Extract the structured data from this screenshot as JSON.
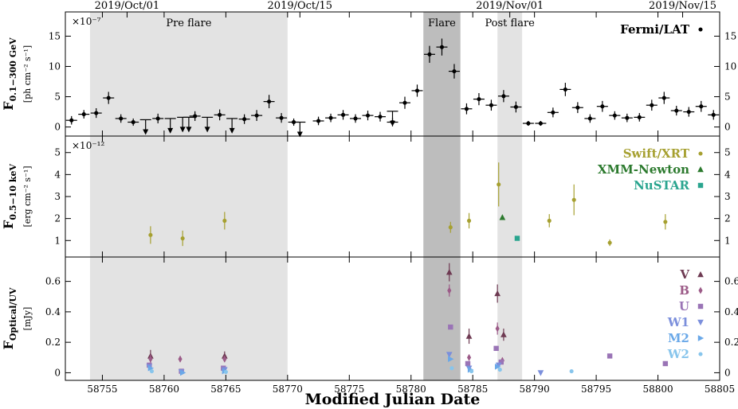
{
  "chart_data": {
    "type": "scatter",
    "xlabel": "Modified Julian Date",
    "xlim": [
      58752,
      58805
    ],
    "x_ticks": [
      58755,
      58760,
      58765,
      58770,
      58775,
      58780,
      58785,
      58790,
      58795,
      58800,
      58805
    ],
    "top_axis_dates": [
      {
        "label": "2019/Oct/01",
        "mjd": 58757
      },
      {
        "label": "2019/Oct/15",
        "mjd": 58771
      },
      {
        "label": "2019/Nov/01",
        "mjd": 58788
      },
      {
        "label": "2019/Nov/15",
        "mjd": 58802
      }
    ],
    "regions": [
      {
        "label": "Pre flare",
        "start": 58754,
        "end": 58770,
        "color": "#e3e3e3"
      },
      {
        "label": "Flare",
        "start": 58781,
        "end": 58784,
        "color": "#bdbdbd"
      },
      {
        "label": "Post flare",
        "start": 58787,
        "end": 58789,
        "color": "#e3e3e3"
      }
    ],
    "panels": [
      {
        "id": "gamma",
        "ylabel_main": "F",
        "ylabel_sub": "0.1−300 GeV",
        "ylabel_unit": "[ph cm⁻² s⁻¹]",
        "scale_note": "×10⁻⁷",
        "ylim": [
          -1.5,
          19
        ],
        "yticks": [
          0,
          5,
          10,
          15
        ],
        "series": [
          {
            "name": "Fermi/LAT",
            "color": "#000000",
            "marker": "circle",
            "points": [
              [
                58752.5,
                1.1,
                0.7
              ],
              [
                58753.5,
                2.1,
                0.7
              ],
              [
                58754.5,
                2.3,
                0.8
              ],
              [
                58755.5,
                4.8,
                1.0
              ],
              [
                58756.5,
                1.4,
                0.7
              ],
              [
                58757.5,
                0.8,
                0.6
              ],
              [
                58759.5,
                1.4,
                0.8
              ],
              [
                58762.5,
                1.8,
                0.8
              ],
              [
                58764.5,
                2.0,
                0.9
              ],
              [
                58766.5,
                1.3,
                0.8
              ],
              [
                58767.5,
                1.9,
                0.9
              ],
              [
                58768.5,
                4.2,
                1.1
              ],
              [
                58769.5,
                1.5,
                0.8
              ],
              [
                58770.5,
                0.8,
                0.6
              ],
              [
                58772.5,
                1.0,
                0.7
              ],
              [
                58773.5,
                1.5,
                0.7
              ],
              [
                58774.5,
                2.0,
                0.8
              ],
              [
                58775.5,
                1.4,
                0.7
              ],
              [
                58776.5,
                1.9,
                0.8
              ],
              [
                58777.5,
                1.7,
                0.8
              ],
              [
                58778.5,
                0.8,
                0.7
              ],
              [
                58779.5,
                4.0,
                1.0
              ],
              [
                58780.5,
                6.0,
                1.0
              ],
              [
                58781.5,
                12.0,
                1.4
              ],
              [
                58782.5,
                13.2,
                1.4
              ],
              [
                58783.5,
                9.2,
                1.2
              ],
              [
                58784.5,
                3.0,
                0.9
              ],
              [
                58785.5,
                4.6,
                1.0
              ],
              [
                58786.5,
                3.6,
                0.9
              ],
              [
                58787.5,
                5.1,
                1.0
              ],
              [
                58788.5,
                3.3,
                0.9
              ],
              [
                58789.5,
                0.6,
                0.4
              ],
              [
                58790.5,
                0.6,
                0.4
              ],
              [
                58791.5,
                2.4,
                0.8
              ],
              [
                58792.5,
                6.2,
                1.1
              ],
              [
                58793.5,
                3.2,
                0.9
              ],
              [
                58794.5,
                1.4,
                0.7
              ],
              [
                58795.5,
                3.4,
                0.9
              ],
              [
                58796.5,
                1.9,
                0.7
              ],
              [
                58797.5,
                1.5,
                0.7
              ],
              [
                58798.5,
                1.6,
                0.7
              ],
              [
                58799.5,
                3.6,
                0.9
              ],
              [
                58800.5,
                4.8,
                1.0
              ],
              [
                58801.5,
                2.7,
                0.8
              ],
              [
                58802.5,
                2.5,
                0.8
              ],
              [
                58803.5,
                3.4,
                0.9
              ],
              [
                58804.5,
                2.0,
                0.8
              ]
            ],
            "upper_limits": [
              [
                58758.5,
                1.2
              ],
              [
                58760.5,
                1.4
              ],
              [
                58761.5,
                1.6
              ],
              [
                58762.0,
                1.6
              ],
              [
                58763.5,
                1.6
              ],
              [
                58765.5,
                1.4
              ],
              [
                58771.0,
                0.8
              ],
              [
                58778.5,
                2.6
              ]
            ]
          }
        ]
      },
      {
        "id": "xray",
        "ylabel_main": "F",
        "ylabel_sub": "0.5−10 keV",
        "ylabel_unit": "[erg cm⁻² s⁻¹]",
        "scale_note": "×10⁻¹²",
        "ylim": [
          0.25,
          5.75
        ],
        "yticks": [
          1,
          2,
          3,
          4,
          5
        ],
        "series": [
          {
            "name": "Swift/XRT",
            "color": "#a6a030",
            "marker": "circle",
            "points": [
              [
                58758.9,
                1.25,
                0.4
              ],
              [
                58761.5,
                1.1,
                0.35
              ],
              [
                58764.9,
                1.9,
                0.4
              ],
              [
                58783.2,
                1.6,
                0.25
              ],
              [
                58784.7,
                1.9,
                0.35
              ],
              [
                58787.1,
                3.55,
                1.0
              ],
              [
                58791.2,
                1.9,
                0.3
              ],
              [
                58793.2,
                2.85,
                0.7
              ],
              [
                58796.1,
                0.9,
                0.15
              ],
              [
                58800.6,
                1.85,
                0.35
              ]
            ]
          },
          {
            "name": "XMM-Newton",
            "color": "#2c7a2e",
            "marker": "triangle",
            "points": [
              [
                58787.4,
                2.05,
                0
              ]
            ]
          },
          {
            "name": "NuSTAR",
            "color": "#2aa58f",
            "marker": "square",
            "points": [
              [
                58788.6,
                1.1,
                0
              ]
            ]
          }
        ]
      },
      {
        "id": "optical",
        "ylabel_main": "F",
        "ylabel_sub": "Optical/UV",
        "ylabel_unit": "[mJy]",
        "scale_note": "",
        "ylim": [
          -0.05,
          0.76
        ],
        "yticks": [
          0,
          0.2,
          0.4,
          0.6
        ],
        "series": [
          {
            "name": "V",
            "color": "#6e3a52",
            "marker": "triangle",
            "points": [
              [
                58758.9,
                0.11,
                0.04
              ],
              [
                58764.9,
                0.11,
                0.03
              ],
              [
                58783.1,
                0.66,
                0.06
              ],
              [
                58784.7,
                0.24,
                0.05
              ],
              [
                58787.0,
                0.52,
                0.06
              ],
              [
                58787.5,
                0.25,
                0.04
              ]
            ]
          },
          {
            "name": "B",
            "color": "#9c5b88",
            "marker": "diamond",
            "points": [
              [
                58758.9,
                0.09,
                0.03
              ],
              [
                58761.3,
                0.09,
                0.02
              ],
              [
                58764.9,
                0.09,
                0.02
              ],
              [
                58783.1,
                0.54,
                0.04
              ],
              [
                58784.7,
                0.1,
                0.02
              ],
              [
                58787.0,
                0.29,
                0.04
              ],
              [
                58787.4,
                0.08,
                0.02
              ]
            ]
          },
          {
            "name": "U",
            "color": "#9a74b6",
            "marker": "square",
            "points": [
              [
                58758.8,
                0.05,
                0
              ],
              [
                58761.4,
                0.01,
                0
              ],
              [
                58764.8,
                0.03,
                0
              ],
              [
                58783.2,
                0.3,
                0
              ],
              [
                58784.6,
                0.06,
                0
              ],
              [
                58786.9,
                0.16,
                0
              ],
              [
                58787.3,
                0.07,
                0
              ],
              [
                58796.1,
                0.11,
                0
              ],
              [
                58800.6,
                0.06,
                0
              ]
            ]
          },
          {
            "name": "W1",
            "color": "#7b8fdc",
            "marker": "tri-down",
            "points": [
              [
                58758.8,
                0.04,
                0
              ],
              [
                58761.4,
                0.005,
                0
              ],
              [
                58764.9,
                0.02,
                0
              ],
              [
                58783.1,
                0.12,
                0
              ],
              [
                58784.7,
                0.03,
                0
              ],
              [
                58787.1,
                0.05,
                0
              ],
              [
                58790.5,
                0.0,
                0
              ]
            ]
          },
          {
            "name": "M2",
            "color": "#6aa8e8",
            "marker": "tri-right",
            "points": [
              [
                58758.9,
                0.03,
                0
              ],
              [
                58761.5,
                0.0,
                0
              ],
              [
                58764.9,
                0.01,
                0
              ],
              [
                58783.2,
                0.09,
                0
              ],
              [
                58784.8,
                0.02,
                0
              ],
              [
                58787.0,
                0.04,
                0
              ]
            ]
          },
          {
            "name": "W2",
            "color": "#87c5ec",
            "marker": "circle",
            "points": [
              [
                58759.0,
                0.01,
                0
              ],
              [
                58765.0,
                0.005,
                0
              ],
              [
                58783.3,
                0.03,
                0
              ],
              [
                58784.9,
                0.01,
                0
              ],
              [
                58787.2,
                0.02,
                0
              ],
              [
                58793.0,
                0.01,
                0
              ]
            ]
          }
        ]
      }
    ]
  }
}
